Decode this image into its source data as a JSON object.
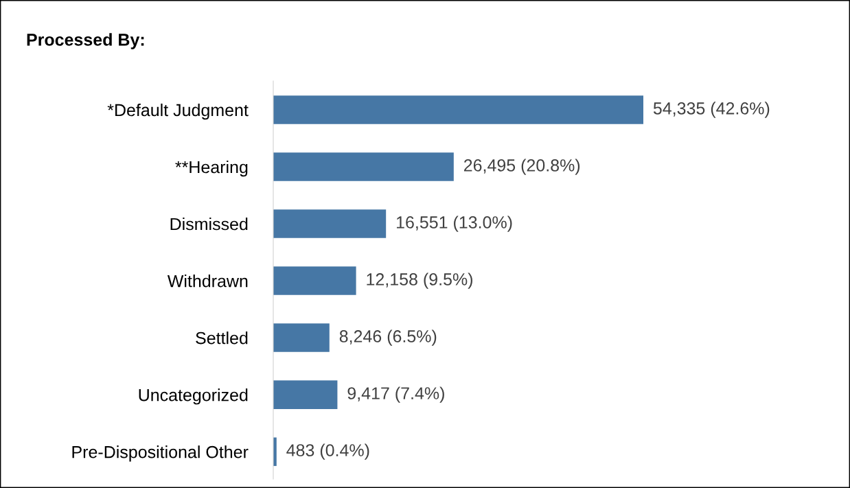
{
  "chart_data": {
    "type": "bar",
    "orientation": "horizontal",
    "title": "Processed By:",
    "categories": [
      "*Default Judgment",
      "**Hearing",
      "Dismissed",
      "Withdrawn",
      "Settled",
      "Uncategorized",
      "Pre-Dispositional Other"
    ],
    "values": [
      54335,
      26495,
      16551,
      12158,
      8246,
      9417,
      483
    ],
    "value_labels": [
      "54,335 (42.6%)",
      "26,495 (20.8%)",
      "16,551 (13.0%)",
      "12,158 (9.5%)",
      "8,246 (6.5%)",
      "9,417 (7.4%)",
      "483 (0.4%)"
    ],
    "color": "#4677a5",
    "grid": false,
    "legend": false,
    "tick_labels": "y"
  }
}
